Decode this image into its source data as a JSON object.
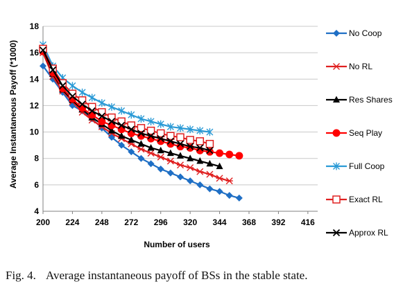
{
  "caption": {
    "figure_number": "Fig. 4.",
    "text": "Average instantaneous payoff of BSs in the stable state."
  },
  "chart_data": {
    "type": "line",
    "title": "",
    "xlabel": "Number of users",
    "ylabel": "Average Instantaneous Payoff (*1000)",
    "x": [
      200,
      208,
      216,
      224,
      232,
      240,
      248,
      256,
      264,
      272,
      280,
      288,
      296,
      304,
      312,
      320,
      328,
      336,
      344,
      352,
      360,
      368,
      376,
      384,
      392,
      400,
      408,
      416,
      424
    ],
    "xticks": [
      200,
      224,
      248,
      272,
      296,
      320,
      344,
      368,
      392,
      416
    ],
    "ylim": [
      4,
      18
    ],
    "yticks": [
      4,
      6,
      8,
      10,
      12,
      14,
      16,
      18
    ],
    "grid": "horizontal",
    "legend_position": "right",
    "series": [
      {
        "name": "No Coop",
        "color": "#1f6fc5",
        "marker": "diamond",
        "values": [
          15.0,
          14.0,
          13.0,
          12.0,
          11.6,
          11.0,
          10.3,
          9.6,
          9.0,
          8.5,
          8.0,
          7.6,
          7.2,
          6.9,
          6.6,
          6.3,
          6.0,
          5.7,
          5.5,
          5.2,
          5.0,
          null,
          null,
          null,
          null,
          null,
          null,
          null,
          null
        ]
      },
      {
        "name": "No RL",
        "color": "#e02020",
        "marker": "asterisk",
        "values": [
          16.0,
          14.2,
          13.1,
          12.3,
          11.5,
          10.9,
          10.4,
          9.9,
          9.5,
          9.1,
          8.7,
          8.4,
          8.1,
          7.8,
          7.5,
          7.3,
          7.0,
          6.8,
          6.5,
          6.3,
          null,
          null,
          null,
          null,
          null,
          null,
          null,
          null,
          null
        ]
      },
      {
        "name": "Res Shares",
        "color": "#000000",
        "marker": "triangle",
        "values": [
          16.1,
          14.4,
          13.2,
          12.4,
          11.7,
          11.1,
          10.6,
          10.1,
          9.7,
          9.4,
          9.1,
          8.8,
          8.6,
          8.4,
          8.2,
          8.0,
          7.8,
          7.6,
          7.4,
          null,
          null,
          null,
          null,
          null,
          null,
          null,
          null,
          null,
          null
        ]
      },
      {
        "name": "Seq Play",
        "color": "#ff0000",
        "marker": "circle",
        "values": [
          16.1,
          14.5,
          13.3,
          12.5,
          11.8,
          11.3,
          10.8,
          10.5,
          10.2,
          9.9,
          9.7,
          9.5,
          9.3,
          9.1,
          8.9,
          8.8,
          8.6,
          8.5,
          8.4,
          8.3,
          8.2,
          null,
          null,
          null,
          null,
          null,
          null,
          null,
          null
        ]
      },
      {
        "name": "Full Coop",
        "color": "#2a9ad6",
        "marker": "star",
        "values": [
          16.6,
          15.0,
          14.1,
          13.5,
          13.0,
          12.6,
          12.2,
          11.9,
          11.6,
          11.3,
          11.0,
          10.8,
          10.6,
          10.4,
          10.3,
          10.2,
          10.1,
          10.0,
          null,
          null,
          null,
          null,
          null,
          null,
          null,
          null,
          null,
          null,
          null
        ]
      },
      {
        "name": "Exact RL",
        "color": "#e02020",
        "marker": "square",
        "values": [
          16.3,
          14.8,
          13.7,
          12.9,
          12.4,
          11.9,
          11.5,
          11.1,
          10.8,
          10.5,
          10.3,
          10.1,
          9.9,
          9.7,
          9.6,
          9.4,
          9.3,
          9.1,
          null,
          null,
          null,
          null,
          null,
          null,
          null,
          null,
          null,
          null,
          null
        ]
      },
      {
        "name": "Approx RL",
        "color": "#000000",
        "marker": "cross",
        "values": [
          16.2,
          14.7,
          13.5,
          12.7,
          12.1,
          11.6,
          11.2,
          10.8,
          10.5,
          10.2,
          9.9,
          9.7,
          9.5,
          9.3,
          9.1,
          8.9,
          8.8,
          8.6,
          null,
          null,
          null,
          null,
          null,
          null,
          null,
          null,
          null,
          null,
          null
        ]
      }
    ]
  }
}
